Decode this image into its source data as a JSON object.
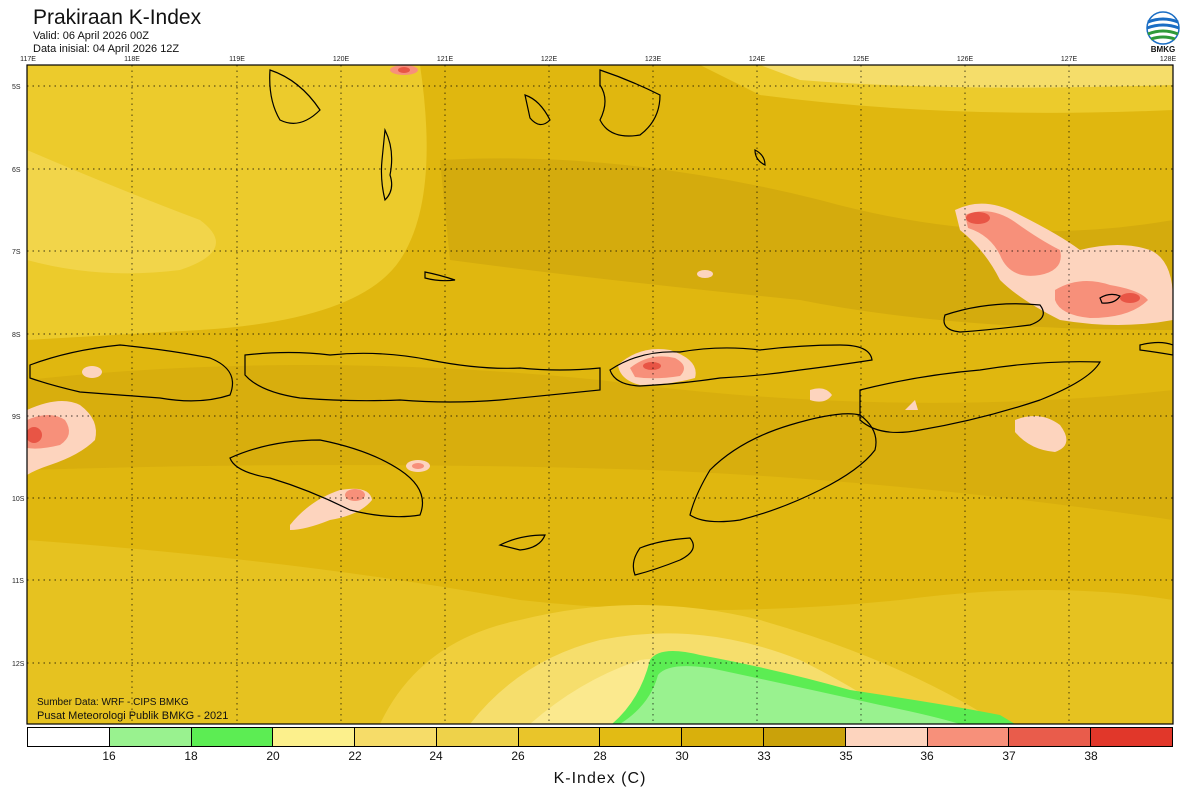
{
  "header": {
    "title": "Prakiraan K-Index",
    "valid": "Valid: 06 April 2026 00Z",
    "initial": "Data inisial: 04 April 2026 12Z"
  },
  "logo": {
    "text": "BMKG",
    "icon": "bmkg-logo-icon"
  },
  "map": {
    "longitude_ticks": [
      "117E",
      "118E",
      "119E",
      "120E",
      "121E",
      "122E",
      "123E",
      "124E",
      "125E",
      "126E",
      "127E",
      "128E"
    ],
    "latitude_ticks": [
      "5S",
      "6S",
      "7S",
      "8S",
      "9S",
      "10S",
      "11S",
      "12S"
    ],
    "grid": "dotted",
    "colors": {
      "base": "#e0b70f",
      "dark": "#cfa80d",
      "light": "#eccb2c",
      "pale": "#f5dd6a",
      "cream": "#fbe98e",
      "green_light": "#99f28f",
      "green": "#5ced53",
      "peach": "#fdd4be",
      "salmon": "#f7907a",
      "red": "#e85545",
      "land_outline": "#000000"
    }
  },
  "footer": {
    "source": "Sumber Data: WRF - CIPS BMKG",
    "center": "Pusat Meteorologi Publik BMKG - 2021"
  },
  "colorbar": {
    "colors": [
      "#ffffff",
      "#99f28f",
      "#5ced53",
      "#fcf08c",
      "#f6dc68",
      "#eed24a",
      "#e9c52a",
      "#e2bb14",
      "#d9b00c",
      "#caa20a",
      "#fdd4be",
      "#f7907a",
      "#e95c4b",
      "#e1372a"
    ],
    "labels": [
      "16",
      "18",
      "20",
      "22",
      "24",
      "26",
      "28",
      "30",
      "33",
      "35",
      "36",
      "37",
      "38"
    ],
    "axis_label": "K-Index (C)"
  }
}
